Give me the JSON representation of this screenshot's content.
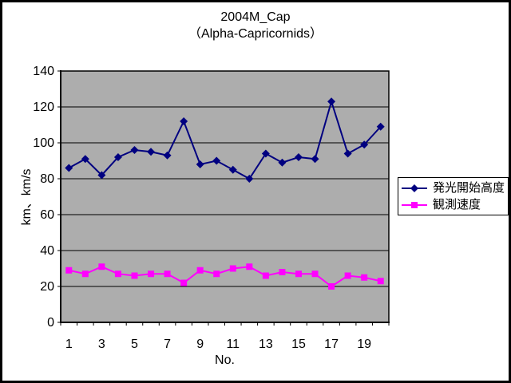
{
  "chart": {
    "title_line1": "2004M_Cap",
    "title_line2": "（Alpha-Capricornids）",
    "y_axis_title": "km、km/s",
    "x_axis_title": "No."
  },
  "chart_data": {
    "type": "line",
    "title": "2004M_Cap（Alpha-Capricornids）",
    "xlabel": "No.",
    "ylabel": "km、km/s",
    "x": [
      1,
      2,
      3,
      4,
      5,
      6,
      7,
      8,
      9,
      10,
      11,
      12,
      13,
      14,
      15,
      16,
      17,
      18,
      19,
      20
    ],
    "x_tick_labels": [
      1,
      3,
      5,
      7,
      9,
      11,
      13,
      15,
      17,
      19
    ],
    "y_ticks": [
      0,
      20,
      40,
      60,
      80,
      100,
      120,
      140
    ],
    "ylim": [
      0,
      140
    ],
    "grid": true,
    "plot_background": "#ADADAD",
    "gridline_color": "#000000",
    "legend_position": "right",
    "series": [
      {
        "name": "発光開始高度",
        "color": "#000080",
        "marker": "diamond",
        "values": [
          86,
          91,
          82,
          92,
          96,
          95,
          93,
          112,
          88,
          90,
          85,
          80,
          94,
          89,
          92,
          91,
          123,
          94,
          99,
          109
        ]
      },
      {
        "name": "観測速度",
        "color": "#FF00FF",
        "marker": "square",
        "values": [
          29,
          27,
          31,
          27,
          26,
          27,
          27,
          22,
          29,
          27,
          30,
          31,
          26,
          28,
          27,
          27,
          20,
          26,
          25,
          23
        ]
      }
    ]
  }
}
